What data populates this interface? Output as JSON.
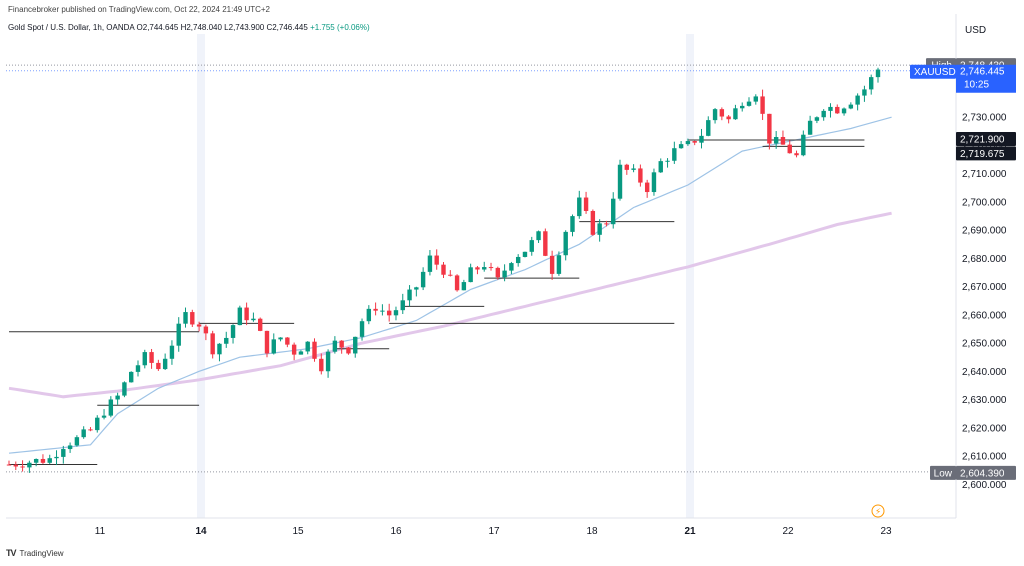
{
  "header": {
    "published": "Financebroker published on TradingView.com, Oct 22, 2024 21:49 UTC+2",
    "symbol_line": "Gold Spot / U.S. Dollar, 1h, OANDA",
    "o": "O2,744.645",
    "h": "H2,748.040",
    "l": "L2,743.900",
    "c": "C2,746.445",
    "change": "+1.755 (+0.06%)"
  },
  "footer": {
    "logo": "TV",
    "brand": "TradingView"
  },
  "currency": "USD",
  "tags": {
    "high_label": "High",
    "high_value": "2,748.430",
    "symbol": "XAUUSD",
    "last_value": "2,746.445",
    "countdown": "10:25",
    "level1": "2,721.900",
    "level2": "2,719.675",
    "low_label": "Low",
    "low_value": "2,604.390"
  },
  "colors": {
    "up": "#089981",
    "down": "#f23645",
    "ma_fast": "#9ec3e6",
    "ma_slow": "#e2c7ea",
    "level": "#333333",
    "tag_blue": "#2962ff",
    "tag_dark": "#131722",
    "tag_gray": "#6a6d78"
  },
  "chart_data": {
    "type": "candlestick",
    "ylim": [
      2595,
      2755
    ],
    "y_ticks": [
      "2,600.000",
      "2,610.000",
      "2,620.000",
      "2,630.000",
      "2,640.000",
      "2,650.000",
      "2,660.000",
      "2,670.000",
      "2,680.000",
      "2,690.000",
      "2,700.000",
      "2,710.000",
      "2,720.000",
      "2,730.000"
    ],
    "x_ticks": [
      "11",
      "14",
      "15",
      "16",
      "17",
      "18",
      "21",
      "22",
      "23"
    ],
    "high": 2748.43,
    "low": 2604.39,
    "last": 2746.445,
    "close_path": [
      [
        0,
        2607
      ],
      [
        3,
        2608
      ],
      [
        6,
        2609
      ],
      [
        8,
        2614
      ],
      [
        10,
        2616
      ],
      [
        12,
        2619
      ],
      [
        14,
        2626
      ],
      [
        16,
        2631
      ],
      [
        18,
        2640
      ],
      [
        20,
        2645
      ],
      [
        22,
        2641
      ],
      [
        24,
        2650
      ],
      [
        26,
        2660
      ],
      [
        28,
        2657
      ],
      [
        30,
        2648
      ],
      [
        32,
        2652
      ],
      [
        34,
        2661
      ],
      [
        36,
        2658
      ],
      [
        38,
        2648
      ],
      [
        40,
        2652
      ],
      [
        42,
        2647
      ],
      [
        44,
        2650
      ],
      [
        46,
        2642
      ],
      [
        48,
        2650
      ],
      [
        50,
        2648
      ],
      [
        52,
        2658
      ],
      [
        54,
        2663
      ],
      [
        56,
        2660
      ],
      [
        58,
        2664
      ],
      [
        60,
        2670
      ],
      [
        62,
        2680
      ],
      [
        64,
        2676
      ],
      [
        66,
        2668
      ],
      [
        68,
        2675
      ],
      [
        70,
        2678
      ],
      [
        72,
        2672
      ],
      [
        74,
        2680
      ],
      [
        76,
        2683
      ],
      [
        78,
        2688
      ],
      [
        80,
        2676
      ],
      [
        82,
        2690
      ],
      [
        84,
        2700
      ],
      [
        86,
        2690
      ],
      [
        88,
        2693
      ],
      [
        90,
        2712
      ],
      [
        92,
        2710
      ],
      [
        94,
        2705
      ],
      [
        96,
        2714
      ],
      [
        98,
        2718
      ],
      [
        100,
        2720
      ],
      [
        102,
        2724
      ],
      [
        104,
        2733
      ],
      [
        106,
        2729
      ],
      [
        108,
        2736
      ],
      [
        110,
        2739
      ],
      [
        112,
        2722
      ],
      [
        114,
        2720
      ],
      [
        116,
        2716
      ],
      [
        118,
        2728
      ],
      [
        120,
        2734
      ],
      [
        122,
        2733
      ],
      [
        124,
        2736
      ],
      [
        126,
        2740
      ],
      [
        128,
        2747
      ]
    ],
    "ma_fast": [
      [
        0,
        2611
      ],
      [
        12,
        2614
      ],
      [
        16,
        2625
      ],
      [
        22,
        2634
      ],
      [
        28,
        2640
      ],
      [
        34,
        2645
      ],
      [
        44,
        2648
      ],
      [
        52,
        2652
      ],
      [
        60,
        2658
      ],
      [
        68,
        2669
      ],
      [
        76,
        2676
      ],
      [
        84,
        2685
      ],
      [
        92,
        2698
      ],
      [
        100,
        2706
      ],
      [
        108,
        2718
      ],
      [
        114,
        2721
      ],
      [
        124,
        2726
      ],
      [
        130,
        2730
      ]
    ],
    "ma_slow": [
      [
        0,
        2634
      ],
      [
        8,
        2631
      ],
      [
        16,
        2633
      ],
      [
        28,
        2637
      ],
      [
        40,
        2642
      ],
      [
        52,
        2650
      ],
      [
        64,
        2656
      ],
      [
        76,
        2663
      ],
      [
        88,
        2670
      ],
      [
        100,
        2677
      ],
      [
        112,
        2685
      ],
      [
        122,
        2692
      ],
      [
        130,
        2696
      ]
    ],
    "support_levels": [
      {
        "y": 2607,
        "x0": 0,
        "x1": 13
      },
      {
        "y": 2628,
        "x0": 13,
        "x1": 28
      },
      {
        "y": 2654,
        "x0": 0,
        "x1": 28
      },
      {
        "y": 2657,
        "x0": 28,
        "x1": 42
      },
      {
        "y": 2648,
        "x0": 48,
        "x1": 56
      },
      {
        "y": 2663,
        "x0": 58,
        "x1": 70
      },
      {
        "y": 2657,
        "x0": 56,
        "x1": 98
      },
      {
        "y": 2673,
        "x0": 70,
        "x1": 84
      },
      {
        "y": 2693,
        "x0": 84,
        "x1": 98
      },
      {
        "y": 2721.9,
        "x0": 100,
        "x1": 126
      },
      {
        "y": 2719.675,
        "x0": 111,
        "x1": 126
      }
    ]
  }
}
